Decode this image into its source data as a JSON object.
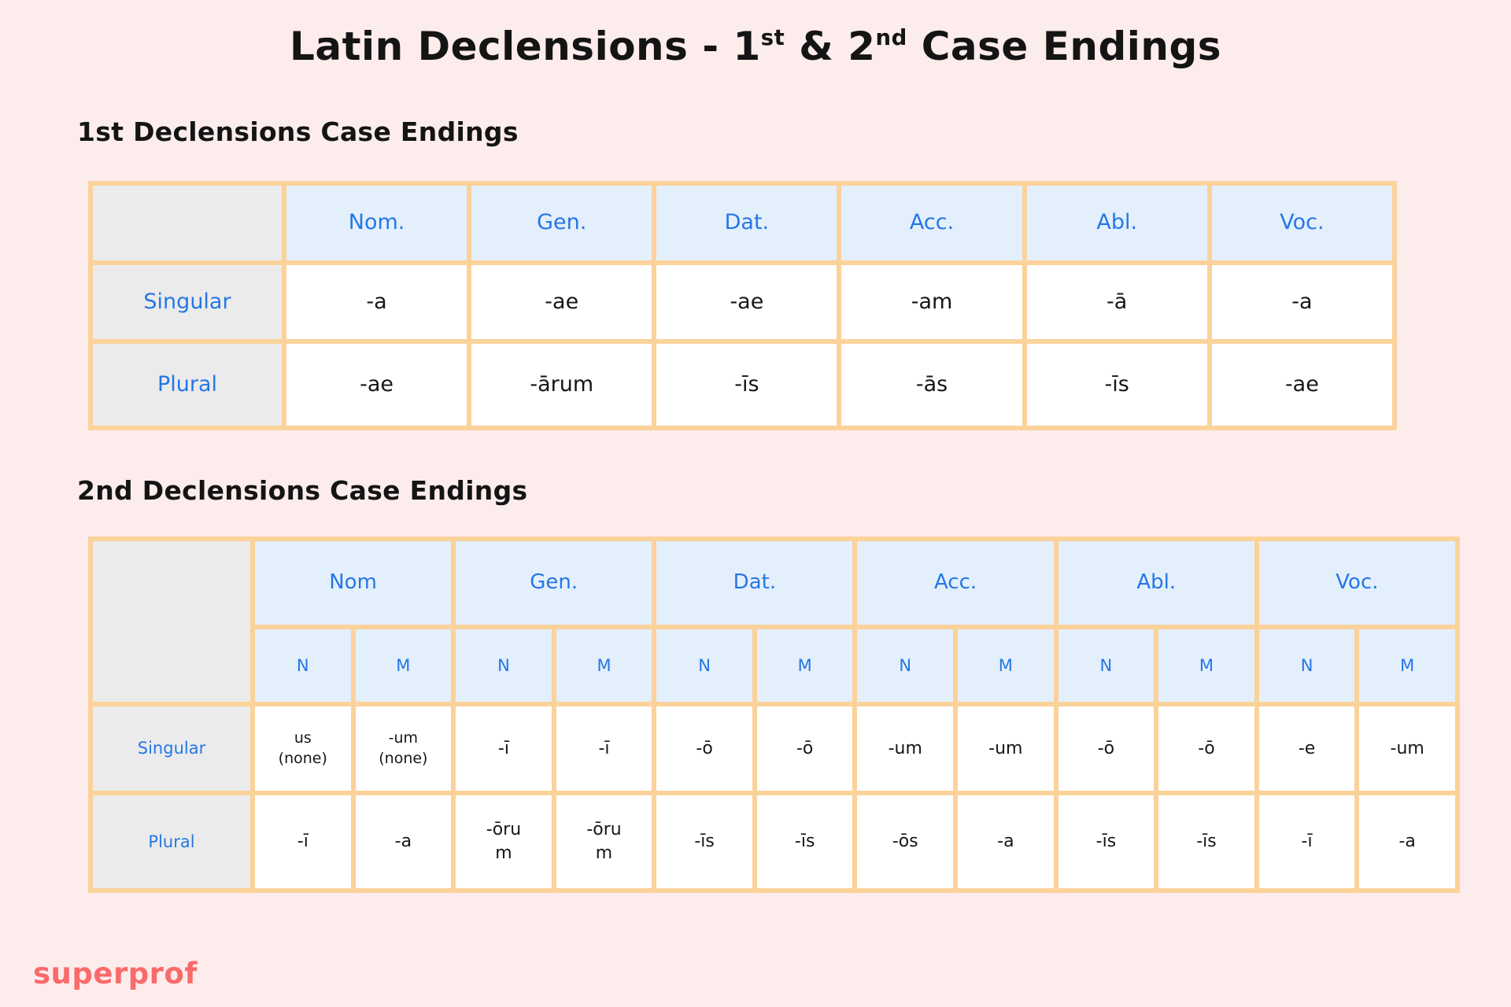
{
  "title": {
    "prefix": "Latin Declensions - 1",
    "sup1": "st",
    "mid": " & 2",
    "sup2": "nd",
    "suffix": " Case Endings"
  },
  "colors": {
    "background": "#fdecec",
    "table_border": "#fbd29a",
    "header_fill": "#e4effc",
    "label_fill": "#ebebeb",
    "accent_blue": "#2577e6",
    "brand_coral": "#fb6a6a"
  },
  "table1": {
    "heading": "1st Declensions Case Endings",
    "columns": [
      "Nom.",
      "Gen.",
      "Dat.",
      "Acc.",
      "Abl.",
      "Voc."
    ],
    "rows": [
      {
        "label": "Singular",
        "cells": [
          "-a",
          "-ae",
          "-ae",
          "-am",
          "-ā",
          "-a"
        ]
      },
      {
        "label": "Plural",
        "cells": [
          "-ae",
          "-ārum",
          "-īs",
          "-ās",
          "-īs",
          "-ae"
        ]
      }
    ]
  },
  "table2": {
    "heading": "2nd Declensions Case Endings",
    "columns": [
      "Nom",
      "Gen.",
      "Dat.",
      "Acc.",
      "Abl.",
      "Voc."
    ],
    "subcolumns": [
      "N",
      "M"
    ],
    "rows": [
      {
        "label": "Singular",
        "cells": [
          "us\n(none)",
          "-um\n(none)",
          "-ī",
          "-ī",
          "-ō",
          "-ō",
          "-um",
          "-um",
          "-ō",
          "-ō",
          "-e",
          "-um"
        ]
      },
      {
        "label": "Plural",
        "cells": [
          "-ī",
          "-a",
          "-ōru\nm",
          "-ōru\nm",
          "-īs",
          "-īs",
          "-ōs",
          "-a",
          "-īs",
          "-īs",
          "-ī",
          "-a"
        ]
      }
    ]
  },
  "brand": {
    "name": "superprof"
  }
}
